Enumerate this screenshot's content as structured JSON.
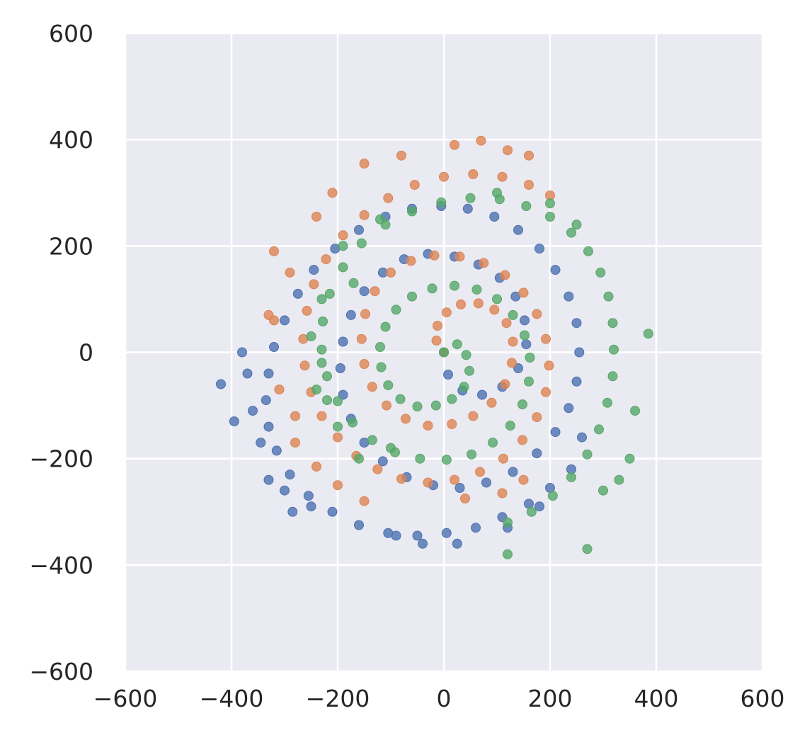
{
  "chart_data": {
    "type": "scatter",
    "xlim": [
      -600,
      600
    ],
    "ylim": [
      -600,
      600
    ],
    "x_ticks": [
      -600,
      -400,
      -200,
      0,
      200,
      400,
      600
    ],
    "y_ticks": [
      -600,
      -400,
      -200,
      0,
      200,
      400,
      600
    ],
    "x_tick_labels": [
      "−600",
      "−400",
      "−200",
      "0",
      "200",
      "400",
      "600"
    ],
    "y_tick_labels": [
      "−600",
      "−400",
      "−200",
      "0",
      "200",
      "400",
      "600"
    ],
    "grid": true,
    "legend": "none",
    "background_color": "#eaeaf2",
    "grid_color": "#ffffff",
    "series": [
      {
        "color": "#4c72b0",
        "points": [
          [
            0,
            0
          ],
          [
            8,
            -42
          ],
          [
            35,
            -72
          ],
          [
            72,
            -80
          ],
          [
            110,
            -65
          ],
          [
            140,
            -30
          ],
          [
            155,
            15
          ],
          [
            152,
            60
          ],
          [
            135,
            105
          ],
          [
            105,
            140
          ],
          [
            65,
            165
          ],
          [
            20,
            180
          ],
          [
            -30,
            185
          ],
          [
            -75,
            175
          ],
          [
            -115,
            150
          ],
          [
            -150,
            115
          ],
          [
            -175,
            70
          ],
          [
            -190,
            20
          ],
          [
            -195,
            -30
          ],
          [
            -190,
            -80
          ],
          [
            -175,
            -125
          ],
          [
            -150,
            -170
          ],
          [
            -115,
            -205
          ],
          [
            -70,
            -235
          ],
          [
            -20,
            -250
          ],
          [
            30,
            -255
          ],
          [
            80,
            -245
          ],
          [
            130,
            -225
          ],
          [
            175,
            -190
          ],
          [
            210,
            -150
          ],
          [
            235,
            -105
          ],
          [
            250,
            -55
          ],
          [
            255,
            0
          ],
          [
            250,
            55
          ],
          [
            235,
            105
          ],
          [
            210,
            155
          ],
          [
            180,
            195
          ],
          [
            140,
            230
          ],
          [
            95,
            255
          ],
          [
            45,
            270
          ],
          [
            -5,
            275
          ],
          [
            -60,
            270
          ],
          [
            -110,
            255
          ],
          [
            -160,
            230
          ],
          [
            -205,
            195
          ],
          [
            -245,
            155
          ],
          [
            -275,
            110
          ],
          [
            -300,
            60
          ],
          [
            -320,
            10
          ],
          [
            -330,
            -40
          ],
          [
            -335,
            -90
          ],
          [
            -330,
            -140
          ],
          [
            -315,
            -185
          ],
          [
            -290,
            -230
          ],
          [
            -255,
            -270
          ],
          [
            -210,
            -300
          ],
          [
            -160,
            -325
          ],
          [
            -105,
            -340
          ],
          [
            -50,
            -345
          ],
          [
            5,
            -340
          ],
          [
            60,
            -330
          ],
          [
            110,
            -310
          ],
          [
            160,
            -285
          ],
          [
            200,
            -255
          ],
          [
            240,
            -220
          ],
          [
            -370,
            -40
          ],
          [
            -380,
            0
          ],
          [
            -360,
            -110
          ],
          [
            -345,
            -170
          ],
          [
            -300,
            -260
          ],
          [
            -250,
            -290
          ],
          [
            -40,
            -360
          ],
          [
            25,
            -360
          ],
          [
            -420,
            -60
          ],
          [
            -395,
            -130
          ],
          [
            -90,
            -345
          ],
          [
            -285,
            -300
          ],
          [
            -330,
            -240
          ],
          [
            120,
            -330
          ],
          [
            180,
            -290
          ],
          [
            260,
            -160
          ]
        ]
      },
      {
        "color": "#dd8452",
        "points": [
          [
            0,
            0
          ],
          [
            -14,
            22
          ],
          [
            -12,
            50
          ],
          [
            5,
            75
          ],
          [
            32,
            90
          ],
          [
            65,
            92
          ],
          [
            95,
            80
          ],
          [
            118,
            55
          ],
          [
            130,
            20
          ],
          [
            128,
            -20
          ],
          [
            115,
            -60
          ],
          [
            90,
            -95
          ],
          [
            55,
            -120
          ],
          [
            15,
            -135
          ],
          [
            -30,
            -138
          ],
          [
            -72,
            -125
          ],
          [
            -108,
            -100
          ],
          [
            -135,
            -65
          ],
          [
            -150,
            -22
          ],
          [
            -155,
            25
          ],
          [
            -148,
            72
          ],
          [
            -130,
            115
          ],
          [
            -100,
            150
          ],
          [
            -62,
            172
          ],
          [
            -18,
            182
          ],
          [
            30,
            180
          ],
          [
            75,
            168
          ],
          [
            115,
            145
          ],
          [
            150,
            112
          ],
          [
            175,
            72
          ],
          [
            192,
            25
          ],
          [
            198,
            -25
          ],
          [
            192,
            -75
          ],
          [
            175,
            -122
          ],
          [
            148,
            -165
          ],
          [
            112,
            -200
          ],
          [
            68,
            -225
          ],
          [
            20,
            -240
          ],
          [
            -30,
            -245
          ],
          [
            -80,
            -238
          ],
          [
            -125,
            -220
          ],
          [
            -165,
            -195
          ],
          [
            -200,
            -160
          ],
          [
            -230,
            -120
          ],
          [
            -250,
            -75
          ],
          [
            -262,
            -25
          ],
          [
            -265,
            25
          ],
          [
            -258,
            78
          ],
          [
            -245,
            128
          ],
          [
            -222,
            175
          ],
          [
            -190,
            220
          ],
          [
            -150,
            258
          ],
          [
            -105,
            290
          ],
          [
            -55,
            315
          ],
          [
            0,
            330
          ],
          [
            55,
            335
          ],
          [
            110,
            330
          ],
          [
            160,
            315
          ],
          [
            200,
            295
          ],
          [
            -240,
            255
          ],
          [
            -290,
            150
          ],
          [
            -320,
            60
          ],
          [
            -310,
            -70
          ],
          [
            -280,
            -170
          ],
          [
            -240,
            -215
          ],
          [
            -320,
            190
          ],
          [
            -210,
            300
          ],
          [
            -150,
            355
          ],
          [
            -80,
            370
          ],
          [
            20,
            390
          ],
          [
            70,
            398
          ],
          [
            120,
            380
          ],
          [
            160,
            370
          ],
          [
            -330,
            70
          ],
          [
            -280,
            -120
          ],
          [
            -200,
            -250
          ],
          [
            -150,
            -280
          ],
          [
            40,
            -275
          ],
          [
            110,
            -265
          ],
          [
            150,
            -240
          ]
        ]
      },
      {
        "color": "#55a868",
        "points": [
          [
            0,
            0
          ],
          [
            25,
            15
          ],
          [
            42,
            -5
          ],
          [
            48,
            -35
          ],
          [
            38,
            -65
          ],
          [
            15,
            -88
          ],
          [
            -15,
            -100
          ],
          [
            -50,
            -102
          ],
          [
            -82,
            -88
          ],
          [
            -105,
            -62
          ],
          [
            -118,
            -28
          ],
          [
            -120,
            10
          ],
          [
            -110,
            48
          ],
          [
            -90,
            80
          ],
          [
            -60,
            105
          ],
          [
            -22,
            120
          ],
          [
            20,
            125
          ],
          [
            62,
            118
          ],
          [
            100,
            100
          ],
          [
            130,
            70
          ],
          [
            152,
            32
          ],
          [
            162,
            -10
          ],
          [
            160,
            -55
          ],
          [
            148,
            -98
          ],
          [
            125,
            -138
          ],
          [
            92,
            -170
          ],
          [
            52,
            -192
          ],
          [
            5,
            -202
          ],
          [
            -45,
            -200
          ],
          [
            -92,
            -188
          ],
          [
            -135,
            -165
          ],
          [
            -172,
            -132
          ],
          [
            -200,
            -92
          ],
          [
            -220,
            -45
          ],
          [
            -230,
            5
          ],
          [
            -228,
            58
          ],
          [
            -215,
            110
          ],
          [
            -190,
            160
          ],
          [
            -155,
            205
          ],
          [
            -110,
            240
          ],
          [
            -60,
            265
          ],
          [
            -5,
            282
          ],
          [
            50,
            290
          ],
          [
            105,
            288
          ],
          [
            155,
            275
          ],
          [
            200,
            255
          ],
          [
            240,
            225
          ],
          [
            272,
            190
          ],
          [
            295,
            150
          ],
          [
            310,
            105
          ],
          [
            318,
            55
          ],
          [
            320,
            5
          ],
          [
            318,
            -45
          ],
          [
            308,
            -95
          ],
          [
            292,
            -145
          ],
          [
            270,
            -192
          ],
          [
            240,
            -235
          ],
          [
            205,
            -270
          ],
          [
            165,
            -300
          ],
          [
            120,
            -320
          ],
          [
            -170,
            130
          ],
          [
            -250,
            30
          ],
          [
            -240,
            -70
          ],
          [
            -200,
            -140
          ],
          [
            120,
            -380
          ],
          [
            270,
            -370
          ],
          [
            385,
            35
          ],
          [
            360,
            -110
          ],
          [
            350,
            -200
          ],
          [
            330,
            -240
          ],
          [
            300,
            -260
          ],
          [
            250,
            240
          ],
          [
            200,
            280
          ],
          [
            100,
            300
          ],
          [
            -120,
            250
          ],
          [
            -190,
            200
          ],
          [
            -230,
            100
          ],
          [
            -160,
            -200
          ],
          [
            -100,
            -180
          ],
          [
            -220,
            -90
          ],
          [
            -230,
            -20
          ]
        ]
      }
    ]
  }
}
